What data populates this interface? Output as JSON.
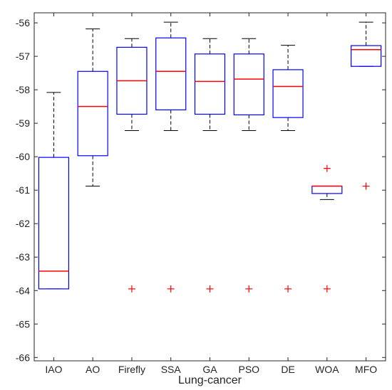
{
  "chart_data": {
    "type": "boxplot",
    "title": "",
    "xlabel": "Lung-cancer",
    "ylabel": "",
    "ylim": [
      -66.1,
      -55.7
    ],
    "yticks": [
      -66,
      -65,
      -64,
      -63,
      -62,
      -61,
      -60,
      -59,
      -58,
      -57,
      -56
    ],
    "ytick_labels": [
      "-66",
      "-65",
      "-64",
      "-63",
      "-62",
      "-61",
      "-60",
      "-59",
      "-58",
      "-57",
      "-56"
    ],
    "grid": false,
    "colors": {
      "box": "#0000ff",
      "median": "#ff0000",
      "whisker": "#000000",
      "outlier": "#ff0000",
      "axis": "#262626"
    },
    "categories": [
      "IAO",
      "AO",
      "Firefly",
      "SSA",
      "GA",
      "PSO",
      "DE",
      "WOA",
      "MFO"
    ],
    "boxes": [
      {
        "label": "IAO",
        "whisker_low": -63.95,
        "q1": -63.95,
        "median": -63.42,
        "q3": -60.02,
        "whisker_high": -58.08,
        "outliers": []
      },
      {
        "label": "AO",
        "whisker_low": -60.88,
        "q1": -59.97,
        "median": -58.5,
        "q3": -57.45,
        "whisker_high": -56.18,
        "outliers": []
      },
      {
        "label": "Firefly",
        "whisker_low": -59.22,
        "q1": -58.73,
        "median": -57.73,
        "q3": -56.73,
        "whisker_high": -56.47,
        "outliers": [
          -63.95
        ]
      },
      {
        "label": "SSA",
        "whisker_low": -59.22,
        "q1": -58.6,
        "median": -57.45,
        "q3": -56.45,
        "whisker_high": -55.98,
        "outliers": [
          -63.95
        ]
      },
      {
        "label": "GA",
        "whisker_low": -59.22,
        "q1": -58.73,
        "median": -57.75,
        "q3": -56.93,
        "whisker_high": -56.47,
        "outliers": [
          -63.95
        ]
      },
      {
        "label": "PSO",
        "whisker_low": -59.22,
        "q1": -58.75,
        "median": -57.68,
        "q3": -56.93,
        "whisker_high": -56.47,
        "outliers": [
          -63.95
        ]
      },
      {
        "label": "DE",
        "whisker_low": -59.22,
        "q1": -58.83,
        "median": -57.9,
        "q3": -57.4,
        "whisker_high": -56.67,
        "outliers": [
          -63.95
        ]
      },
      {
        "label": "WOA",
        "whisker_low": -61.28,
        "q1": -61.1,
        "median": -60.88,
        "q3": -60.88,
        "whisker_high": -60.88,
        "outliers": [
          -60.35,
          -63.95
        ]
      },
      {
        "label": "MFO",
        "whisker_low": -57.3,
        "q1": -57.3,
        "median": -56.8,
        "q3": -56.68,
        "whisker_high": -55.98,
        "outliers": [
          -60.88
        ]
      }
    ]
  }
}
